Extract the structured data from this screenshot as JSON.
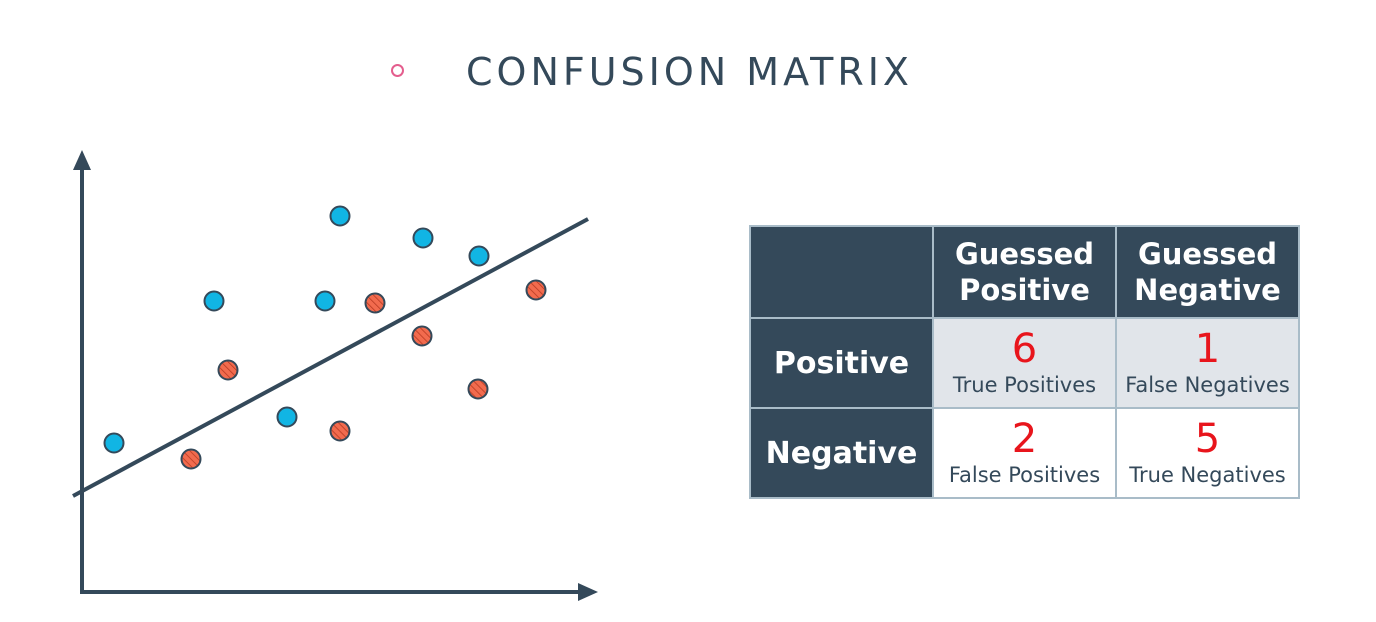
{
  "title": "CONFUSION MATRIX",
  "colors": {
    "positive_point": "#11b5e4",
    "negative_point": "#f26b4e",
    "dark": "#34495a",
    "bullet": "#e45e8e",
    "handwriting": "#e8151c"
  },
  "matrix": {
    "col_headers": [
      "Guessed Positive",
      "Guessed Negative"
    ],
    "rows": [
      {
        "label": "Positive",
        "cells": [
          {
            "value": "6",
            "label": "True Positives"
          },
          {
            "value": "1",
            "label": "False Negatives"
          }
        ]
      },
      {
        "label": "Negative",
        "cells": [
          {
            "value": "2",
            "label": "False Positives"
          },
          {
            "value": "5",
            "label": "True Negatives"
          }
        ]
      }
    ]
  }
}
